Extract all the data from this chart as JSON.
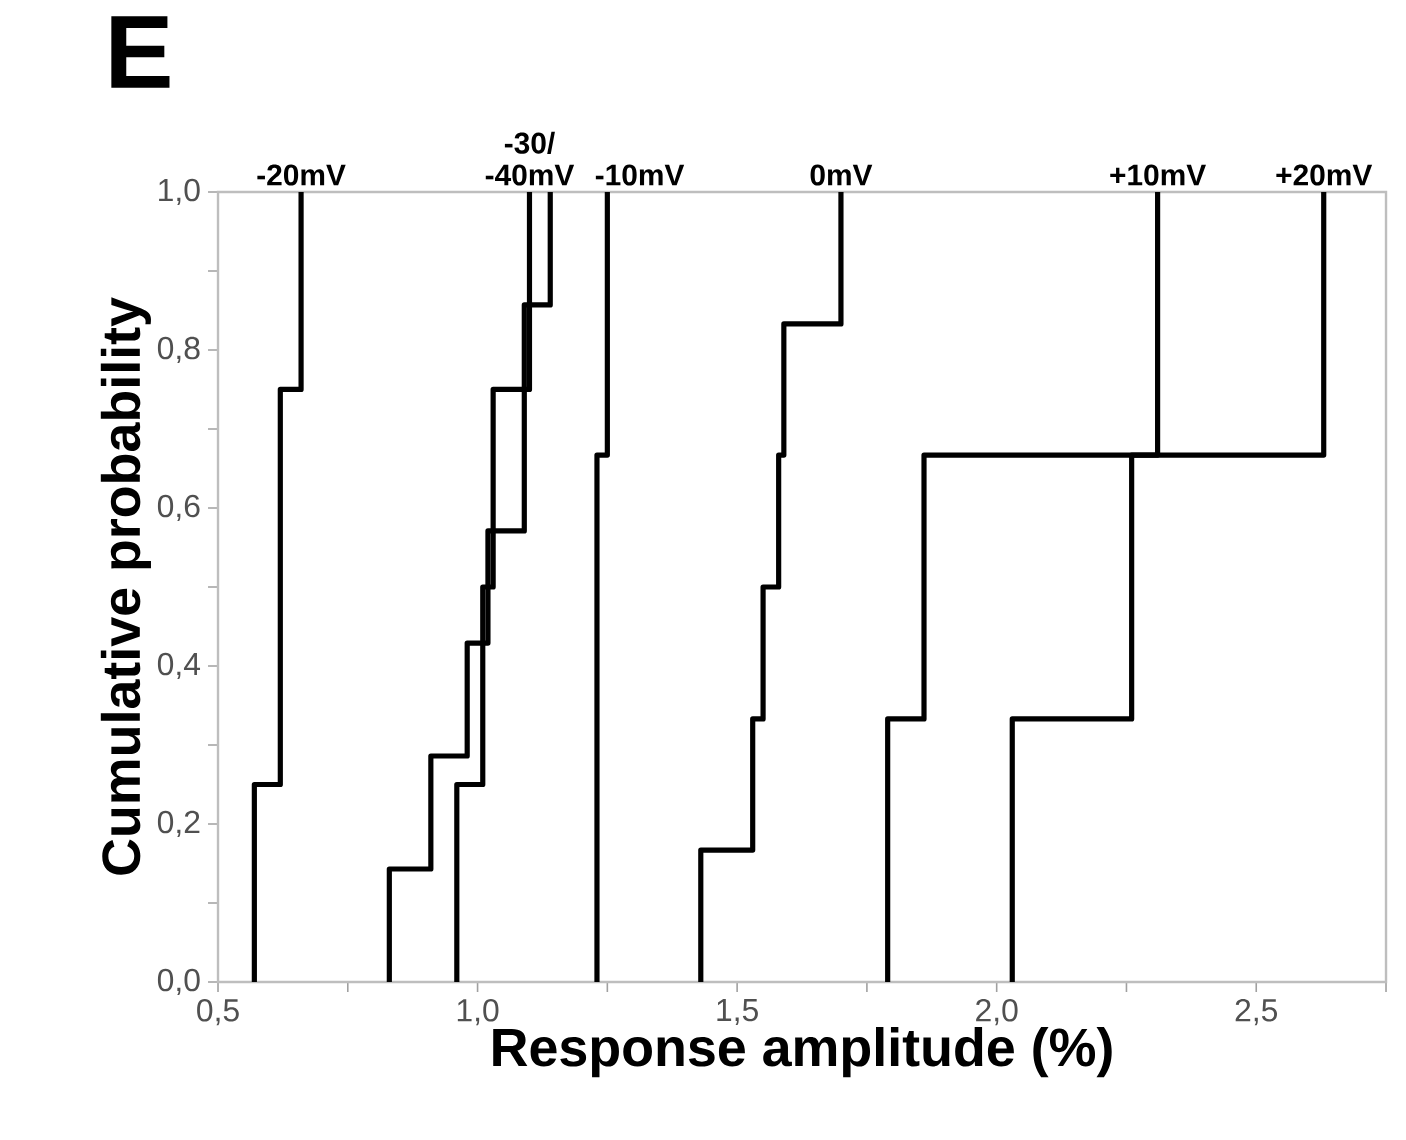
{
  "chart_data": {
    "type": "step",
    "xlabel": "Response amplitude (%)",
    "ylabel": "Cumulative probability",
    "xlim": [
      0.5,
      2.75
    ],
    "ylim": [
      0,
      1
    ],
    "xticks": [
      {
        "value": 0.5,
        "label": "0,5"
      },
      {
        "value": 0.75,
        "label": null
      },
      {
        "value": 1.0,
        "label": "1,0"
      },
      {
        "value": 1.25,
        "label": null
      },
      {
        "value": 1.5,
        "label": "1,5"
      },
      {
        "value": 1.75,
        "label": null
      },
      {
        "value": 2.0,
        "label": "2,0"
      },
      {
        "value": 2.25,
        "label": null
      },
      {
        "value": 2.5,
        "label": "2,5"
      },
      {
        "value": 2.75,
        "label": null
      }
    ],
    "yticks": [
      {
        "value": 0,
        "label": "0,0"
      },
      {
        "value": 0.1,
        "label": null
      },
      {
        "value": 0.2,
        "label": "0,2"
      },
      {
        "value": 0.3,
        "label": null
      },
      {
        "value": 0.4,
        "label": "0,4"
      },
      {
        "value": 0.5,
        "label": null
      },
      {
        "value": 0.6,
        "label": "0,6"
      },
      {
        "value": 0.7,
        "label": null
      },
      {
        "value": 0.8,
        "label": "0,8"
      },
      {
        "value": 0.9,
        "label": null
      },
      {
        "value": 1.0,
        "label": "1,0"
      }
    ],
    "series": [
      {
        "color": "#000000",
        "x": [
          0.57,
          0.57,
          0.62,
          0.66
        ],
        "values": [
          0,
          0.25,
          0.75,
          1.0
        ]
      },
      {
        "color": "#000000",
        "x": [
          0.83,
          0.83,
          0.91,
          0.98,
          1.02,
          1.09,
          1.14
        ],
        "values": [
          0,
          0.143,
          0.286,
          0.429,
          0.571,
          0.857,
          1.0
        ]
      },
      {
        "color": "#000000",
        "x": [
          0.96,
          0.96,
          1.01,
          1.03,
          1.1
        ],
        "values": [
          0,
          0.25,
          0.5,
          0.75,
          1.0
        ]
      },
      {
        "color": "#000000",
        "x": [
          1.23,
          1.23,
          1.25
        ],
        "values": [
          0,
          0.667,
          1.0
        ]
      },
      {
        "color": "#000000",
        "x": [
          1.43,
          1.43,
          1.53,
          1.55,
          1.58,
          1.59,
          1.7
        ],
        "values": [
          0,
          0.167,
          0.333,
          0.5,
          0.667,
          0.833,
          1.0
        ]
      },
      {
        "color": "#000000",
        "x": [
          1.79,
          1.79,
          1.86,
          2.31
        ],
        "values": [
          0,
          0.333,
          0.667,
          1.0
        ]
      },
      {
        "color": "#000000",
        "x": [
          2.03,
          2.03,
          2.26,
          2.63
        ],
        "values": [
          0,
          0.333,
          0.667,
          1.0
        ]
      }
    ],
    "annotations": [
      "E",
      {
        "text": "-20mV",
        "x": 0.66,
        "y": 1.0
      },
      {
        "text": "-30/ -40mV",
        "x": 1.1,
        "y": 1.0
      },
      {
        "text": "-10mV",
        "x": 1.25,
        "y": 1.0
      },
      {
        "text": "0mV",
        "x": 1.7,
        "y": 1.0
      },
      {
        "text": "+10mV",
        "x": 2.31,
        "y": 1.0
      },
      {
        "text": "+20mV",
        "x": 2.63,
        "y": 1.0
      }
    ]
  }
}
